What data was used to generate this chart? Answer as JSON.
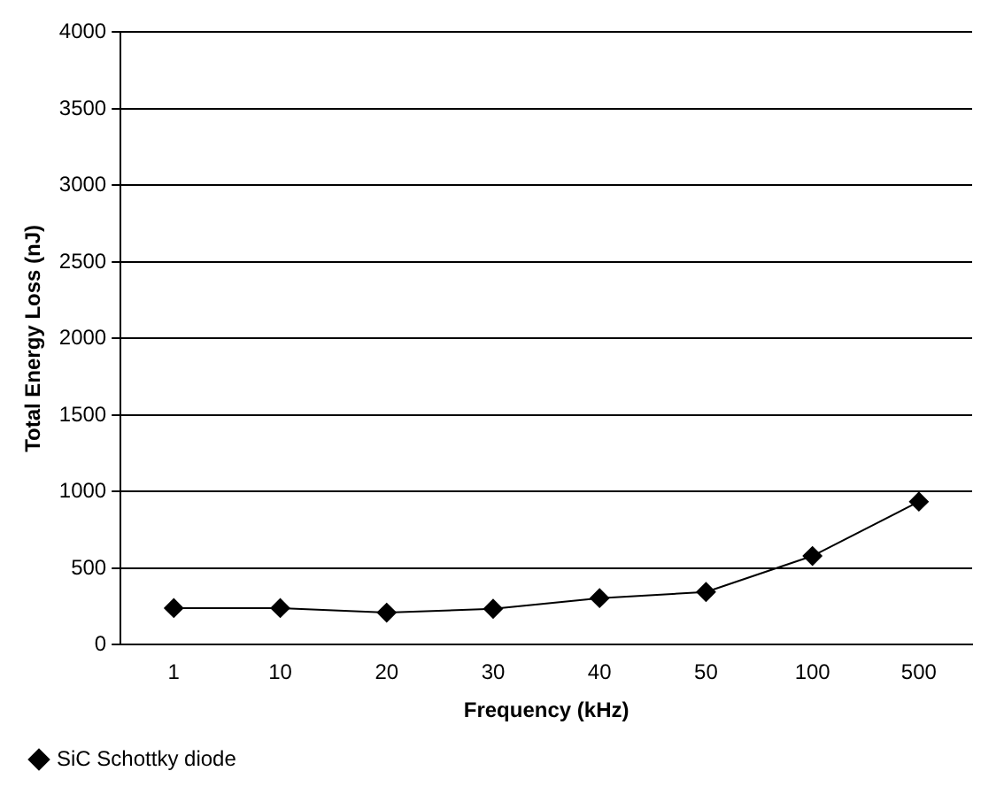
{
  "chart_data": {
    "type": "line",
    "xlabel": "Frequency (kHz)",
    "ylabel": "Total Energy Loss (nJ)",
    "categories": [
      "1",
      "10",
      "20",
      "30",
      "40",
      "50",
      "100",
      "500"
    ],
    "series": [
      {
        "name": "SiC Schottky diode",
        "color": "#000000",
        "values": [
          240,
          240,
          210,
          235,
          305,
          345,
          580,
          935
        ]
      }
    ],
    "ylim": [
      0,
      4000
    ],
    "yticks": [
      0,
      500,
      1000,
      1500,
      2000,
      2500,
      3000,
      3500,
      4000
    ],
    "grid": "y",
    "legend": "bottom left",
    "marker": "diamond",
    "line_style": "solid"
  }
}
